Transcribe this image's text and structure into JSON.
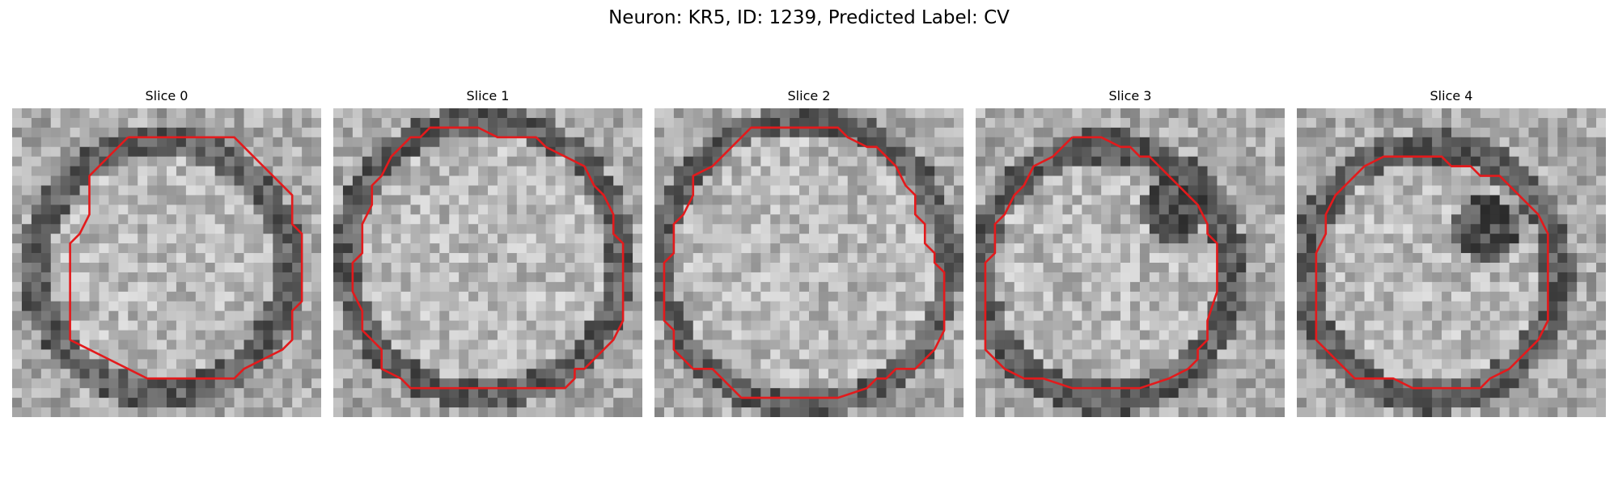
{
  "figure": {
    "title": "Neuron: KR5, ID: 1239, Predicted Label: CV",
    "contour_color": "#e31a1c",
    "colormap": "grayscale",
    "panels": [
      {
        "title": "Slice 0",
        "contour": [
          [
            12,
            3
          ],
          [
            23,
            3
          ],
          [
            26,
            6
          ],
          [
            29,
            9
          ],
          [
            29,
            12
          ],
          [
            30,
            13
          ],
          [
            30,
            20
          ],
          [
            29,
            21
          ],
          [
            29,
            24
          ],
          [
            28,
            25
          ],
          [
            26,
            26
          ],
          [
            24,
            27
          ],
          [
            23,
            28
          ],
          [
            20,
            28
          ],
          [
            16,
            28
          ],
          [
            14,
            28
          ],
          [
            12,
            27
          ],
          [
            10,
            26
          ],
          [
            8,
            25
          ],
          [
            6,
            24
          ],
          [
            6,
            22
          ],
          [
            6,
            19
          ],
          [
            6,
            16
          ],
          [
            6,
            14
          ],
          [
            7,
            13
          ],
          [
            8,
            11
          ],
          [
            8,
            8
          ],
          [
            8,
            7
          ],
          [
            9,
            6
          ],
          [
            11,
            4
          ],
          [
            12,
            3
          ]
        ]
      },
      {
        "title": "Slice 1",
        "contour": [
          [
            11,
            2
          ],
          [
            15,
            2
          ],
          [
            17,
            3
          ],
          [
            21,
            3
          ],
          [
            22,
            4
          ],
          [
            24,
            5
          ],
          [
            26,
            6
          ],
          [
            27,
            8
          ],
          [
            28,
            9
          ],
          [
            29,
            11
          ],
          [
            29,
            13
          ],
          [
            30,
            14
          ],
          [
            30,
            22
          ],
          [
            29,
            24
          ],
          [
            28,
            25
          ],
          [
            26,
            27
          ],
          [
            25,
            27
          ],
          [
            25,
            28
          ],
          [
            24,
            29
          ],
          [
            19,
            29
          ],
          [
            8,
            29
          ],
          [
            7,
            28
          ],
          [
            5,
            27
          ],
          [
            5,
            25
          ],
          [
            4,
            24
          ],
          [
            3,
            23
          ],
          [
            3,
            21
          ],
          [
            2,
            19
          ],
          [
            2,
            16
          ],
          [
            3,
            15
          ],
          [
            3,
            12
          ],
          [
            4,
            10
          ],
          [
            4,
            8
          ],
          [
            5,
            7
          ],
          [
            6,
            5
          ],
          [
            7,
            4
          ],
          [
            8,
            3
          ],
          [
            9,
            3
          ],
          [
            10,
            2
          ],
          [
            11,
            2
          ]
        ]
      },
      {
        "title": "Slice 2",
        "contour": [
          [
            11,
            2
          ],
          [
            19,
            2
          ],
          [
            20,
            3
          ],
          [
            22,
            4
          ],
          [
            23,
            4
          ],
          [
            24,
            5
          ],
          [
            25,
            6
          ],
          [
            26,
            8
          ],
          [
            27,
            9
          ],
          [
            27,
            11
          ],
          [
            28,
            12
          ],
          [
            28,
            14
          ],
          [
            29,
            15
          ],
          [
            29,
            16
          ],
          [
            30,
            17
          ],
          [
            30,
            20
          ],
          [
            30,
            23
          ],
          [
            29,
            25
          ],
          [
            28,
            26
          ],
          [
            27,
            27
          ],
          [
            25,
            27
          ],
          [
            24,
            28
          ],
          [
            23,
            28
          ],
          [
            22,
            29
          ],
          [
            19,
            30
          ],
          [
            9,
            30
          ],
          [
            8,
            29
          ],
          [
            7,
            28
          ],
          [
            6,
            27
          ],
          [
            4,
            27
          ],
          [
            3,
            26
          ],
          [
            2,
            25
          ],
          [
            2,
            23
          ],
          [
            1,
            22
          ],
          [
            1,
            18
          ],
          [
            1,
            16
          ],
          [
            2,
            15
          ],
          [
            2,
            12
          ],
          [
            3,
            11
          ],
          [
            4,
            9
          ],
          [
            4,
            7
          ],
          [
            6,
            6
          ],
          [
            7,
            5
          ],
          [
            8,
            4
          ],
          [
            9,
            3
          ],
          [
            10,
            2
          ],
          [
            11,
            2
          ]
        ]
      },
      {
        "title": "Slice 3",
        "contour": [
          [
            10,
            3
          ],
          [
            13,
            3
          ],
          [
            15,
            4
          ],
          [
            16,
            4
          ],
          [
            17,
            5
          ],
          [
            18,
            5
          ],
          [
            19,
            6
          ],
          [
            20,
            7
          ],
          [
            21,
            8
          ],
          [
            22,
            9
          ],
          [
            23,
            10
          ],
          [
            24,
            12
          ],
          [
            24,
            13
          ],
          [
            25,
            14
          ],
          [
            25,
            16
          ],
          [
            25,
            19
          ],
          [
            24,
            22
          ],
          [
            24,
            24
          ],
          [
            23,
            25
          ],
          [
            23,
            26
          ],
          [
            22,
            27
          ],
          [
            20,
            28
          ],
          [
            17,
            29
          ],
          [
            10,
            29
          ],
          [
            7,
            28
          ],
          [
            5,
            28
          ],
          [
            3,
            27
          ],
          [
            2,
            26
          ],
          [
            1,
            25
          ],
          [
            1,
            22
          ],
          [
            1,
            19
          ],
          [
            1,
            16
          ],
          [
            2,
            15
          ],
          [
            2,
            12
          ],
          [
            3,
            11
          ],
          [
            4,
            9
          ],
          [
            5,
            8
          ],
          [
            6,
            6
          ],
          [
            8,
            5
          ],
          [
            9,
            4
          ],
          [
            10,
            3
          ]
        ]
      },
      {
        "title": "Slice 4",
        "contour": [
          [
            10,
            5
          ],
          [
            12,
            5
          ],
          [
            15,
            5
          ],
          [
            16,
            6
          ],
          [
            18,
            6
          ],
          [
            19,
            7
          ],
          [
            21,
            7
          ],
          [
            23,
            9
          ],
          [
            25,
            11
          ],
          [
            26,
            13
          ],
          [
            26,
            15
          ],
          [
            26,
            18
          ],
          [
            26,
            22
          ],
          [
            25,
            24
          ],
          [
            24,
            25
          ],
          [
            23,
            26
          ],
          [
            22,
            27
          ],
          [
            20,
            28
          ],
          [
            19,
            29
          ],
          [
            17,
            29
          ],
          [
            14,
            29
          ],
          [
            12,
            29
          ],
          [
            10,
            28
          ],
          [
            8,
            28
          ],
          [
            6,
            28
          ],
          [
            5,
            27
          ],
          [
            4,
            26
          ],
          [
            3,
            25
          ],
          [
            2,
            24
          ],
          [
            2,
            20
          ],
          [
            2,
            17
          ],
          [
            2,
            15
          ],
          [
            3,
            13
          ],
          [
            3,
            11
          ],
          [
            4,
            9
          ],
          [
            5,
            8
          ],
          [
            6,
            7
          ],
          [
            7,
            6
          ],
          [
            9,
            5
          ],
          [
            10,
            5
          ]
        ]
      }
    ]
  }
}
